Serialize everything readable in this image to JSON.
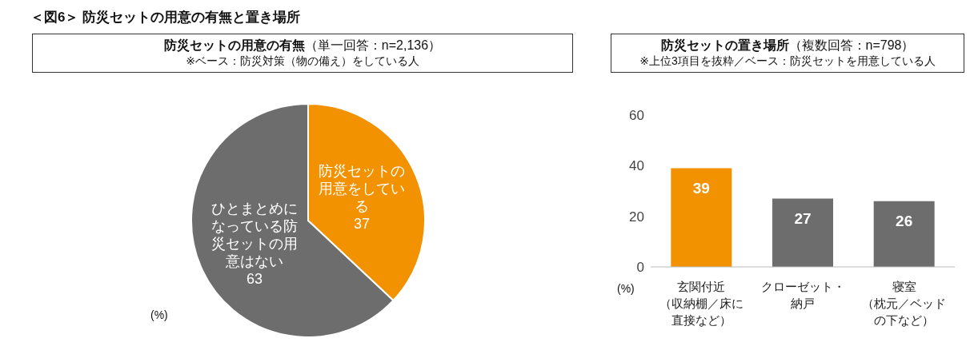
{
  "chart_data": [
    {
      "type": "pie",
      "title": "防災セットの用意の有無",
      "subtitle": "（単一回答：n=2,136）",
      "annotations": [
        "＜図6＞ 防災セットの用意の有無と置き場所",
        "※ベース：防災対策（物の備え）をしている人",
        "(%)"
      ],
      "categories": [
        "防災セットの用意をしている",
        "ひとまとめになっている防災セットの用意はない"
      ],
      "values": [
        37,
        63
      ],
      "colors": [
        "#f39200",
        "#6d6d6d"
      ],
      "data_labels": true,
      "legend": false
    },
    {
      "type": "bar",
      "title": "防災セットの置き場所",
      "subtitle": "（複数回答：n=798）",
      "annotations": [
        "※上位3項目を抜粋／ベース：防災セットを用意している人",
        "(%)"
      ],
      "categories": [
        "玄関付近（収納棚／床に直接など）",
        "クローゼット・納戸",
        "寝室（枕元／ベッドの下など）"
      ],
      "values": [
        39,
        27,
        26
      ],
      "colors": [
        "#f39200",
        "#6d6d6d",
        "#6d6d6d"
      ],
      "ylim": [
        0,
        60
      ],
      "yticks": [
        0,
        20,
        40,
        60
      ],
      "grid": false,
      "data_labels": true,
      "legend": false
    }
  ]
}
